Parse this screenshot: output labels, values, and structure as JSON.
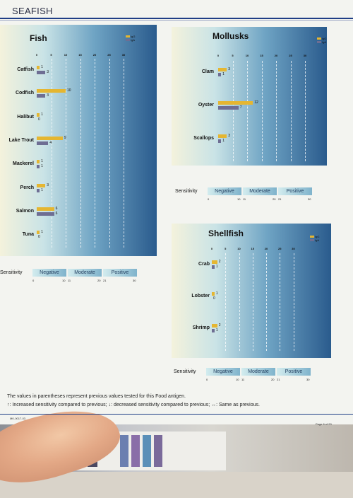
{
  "header": {
    "title": "SEAFISH"
  },
  "legend": {
    "igg": "IgG",
    "iga": "IgA"
  },
  "colors": {
    "igg": "#e5b631",
    "iga": "#6e6e93",
    "rule": "#1f3e86"
  },
  "sensitivity": {
    "label": "Sensitivity",
    "levels": [
      "Negative",
      "Moderate",
      "Positive"
    ],
    "numbers": [
      "0",
      "10",
      "11",
      "20",
      "21",
      "30"
    ]
  },
  "footer": {
    "note1": "The values in parentheses represent previous values tested for this Food antigen.",
    "note2": "↑: Increased sensitivity compared to previous; ↓: decreased sensitivity compared to previous; ↔: Same as previous.",
    "code": "MK-0017-03",
    "page": "Page 6 of 23"
  },
  "chart_data": [
    {
      "type": "bar",
      "orientation": "horizontal",
      "title": "Fish",
      "categories": [
        "Catfish",
        "Codfish",
        "Halibut",
        "Lake Trout",
        "Mackerel",
        "Perch",
        "Salmon",
        "Tuna"
      ],
      "x_ticks": [
        "0",
        "5",
        "10",
        "15",
        "20",
        "25",
        "30"
      ],
      "xlim": [
        0,
        30
      ],
      "legend_position": "top-right",
      "series": [
        {
          "name": "IgG",
          "values": [
            1,
            10,
            1,
            9,
            1,
            3,
            6,
            1
          ]
        },
        {
          "name": "IgA",
          "values": [
            3,
            3,
            0,
            4,
            1,
            1,
            6,
            0
          ]
        }
      ]
    },
    {
      "type": "bar",
      "orientation": "horizontal",
      "title": "Mollusks",
      "categories": [
        "Clam",
        "Oyster",
        "Scallops"
      ],
      "x_ticks": [
        "0",
        "5",
        "10",
        "15",
        "20",
        "25",
        "30"
      ],
      "xlim": [
        0,
        30
      ],
      "legend_position": "top-right",
      "series": [
        {
          "name": "IgG",
          "values": [
            3,
            12,
            3
          ]
        },
        {
          "name": "IgA",
          "values": [
            1,
            7,
            1
          ]
        }
      ]
    },
    {
      "type": "bar",
      "orientation": "horizontal",
      "title": "Shellfish",
      "categories": [
        "Crab",
        "Lobster",
        "Shrimp"
      ],
      "x_ticks": [
        "0",
        "5",
        "10",
        "15",
        "20",
        "25",
        "30"
      ],
      "xlim": [
        0,
        30
      ],
      "legend_position": "top-right",
      "series": [
        {
          "name": "IgG",
          "values": [
            2,
            1,
            2
          ]
        },
        {
          "name": "IgA",
          "values": [
            1,
            0,
            1
          ]
        }
      ]
    }
  ]
}
